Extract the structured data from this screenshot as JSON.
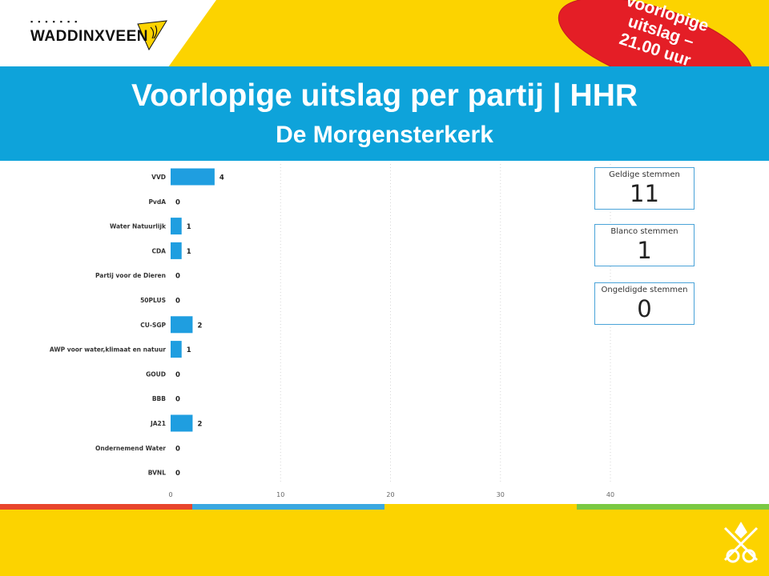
{
  "slide": {
    "title": "Voorlopige uitslag per partij | HHR",
    "subtitle": "De Morgensterkerk",
    "badge_lines": [
      "Voorlopige",
      "uitslag –",
      "21.00 uur"
    ],
    "logo_text": "WADDINXVEEN"
  },
  "colors": {
    "yellow": "#fcd300",
    "blue_banner": "#0ea3da",
    "bar": "#1f9ee0",
    "badge_red": "#e41e26",
    "stripe_red": "#e8452c",
    "stripe_blue": "#3aa8e0",
    "stripe_yellow": "#fcd300",
    "stripe_green": "#7ac943"
  },
  "cards": [
    {
      "label": "Geldige stemmen",
      "value": "11"
    },
    {
      "label": "Blanco stemmen",
      "value": "1"
    },
    {
      "label": "Ongeldigde stemmen",
      "value": "0"
    }
  ],
  "chart_data": {
    "type": "bar",
    "orientation": "horizontal",
    "categories": [
      "VVD",
      "PvdA",
      "Water Natuurlijk",
      "CDA",
      "Partij voor de Dieren",
      "50PLUS",
      "CU-SGP",
      "AWP voor water,klimaat en natuur",
      "GOUD",
      "BBB",
      "JA21",
      "Ondernemend Water",
      "BVNL"
    ],
    "values": [
      4,
      0,
      1,
      1,
      0,
      0,
      2,
      1,
      0,
      0,
      2,
      0,
      0
    ],
    "xticks": [
      0,
      10,
      20,
      30,
      40
    ],
    "xlim": [
      0,
      40
    ],
    "grid": "vertical dotted"
  }
}
